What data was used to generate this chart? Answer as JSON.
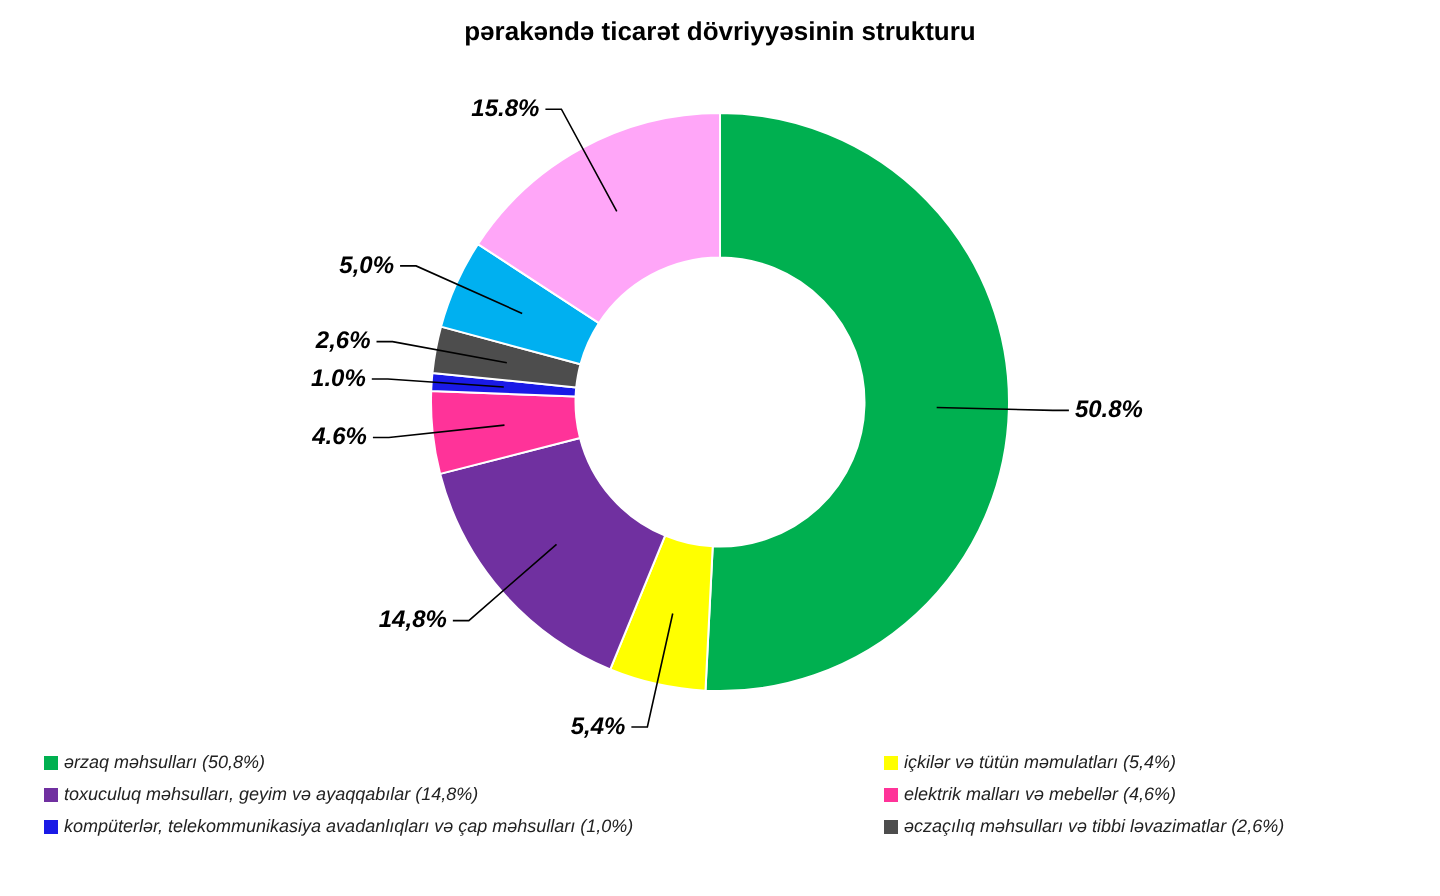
{
  "chart_data": {
    "type": "donut",
    "title": "pərakəndə ticarət dövriyyəsinin strukturu",
    "categories": [
      "ərzaq məhsulları  (50,8%)",
      "içkilər və tütün məmulatları   (5,4%)",
      "toxuculuq məhsulları,  geyim və ayaqqabılar (14,8%)",
      "elektrik malları  və mebellər  (4,6%)",
      "kompüterlər,  telekommunikasiya  avadanlıqları və çap məhsulları (1,0%)",
      "əczaçılıq məhsulları  və tibbi ləvazimatlar  (2,6%)",
      null,
      null
    ],
    "values": [
      50.8,
      5.4,
      14.8,
      4.6,
      1.0,
      2.6,
      5.0,
      15.8
    ],
    "colors": [
      "#00b050",
      "#ffff00",
      "#7030a0",
      "#ff3399",
      "#1a1ae6",
      "#4d4d4d",
      "#00b0f0",
      "#ffa6f8"
    ],
    "value_labels": [
      "50.8%",
      "5,4%",
      "14,8%",
      "4.6%",
      "1.0%",
      "2,6%",
      "5,0%",
      "15.8%"
    ],
    "legend": "bottom"
  }
}
